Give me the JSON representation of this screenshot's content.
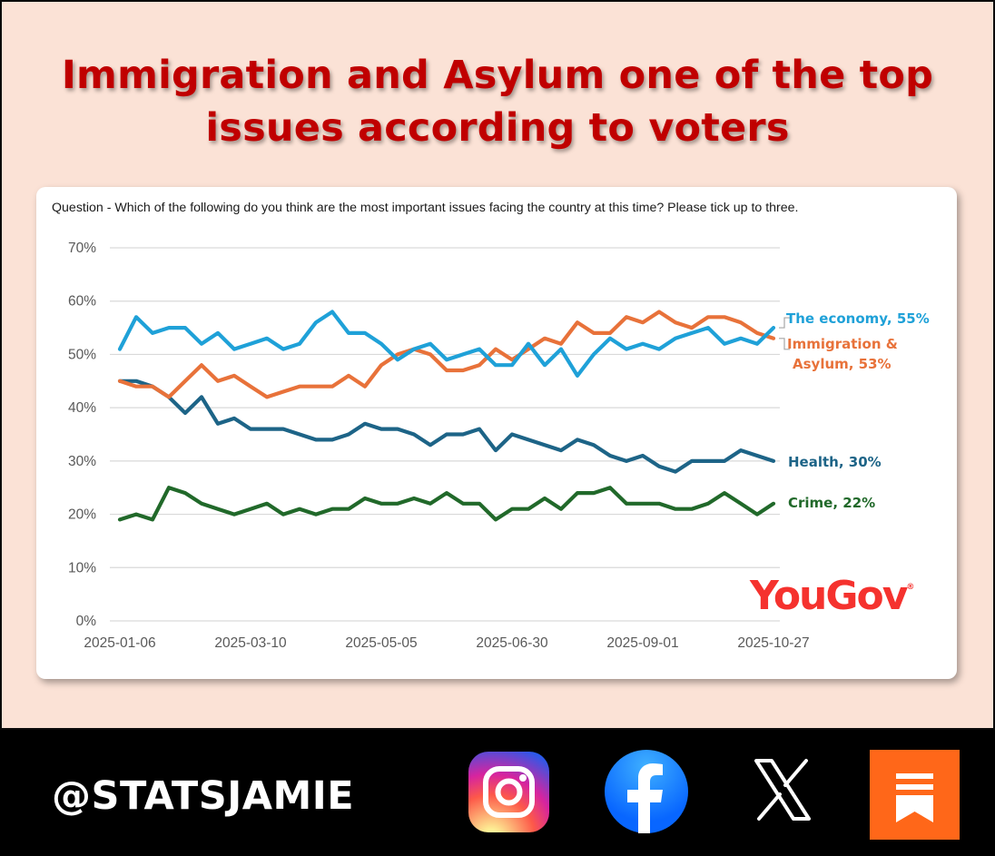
{
  "title_lines": [
    "Immigration and Asylum one of the top",
    "issues according to voters"
  ],
  "question": "Question - Which of the following do you think are the most important issues facing the country at this time? Please tick up to three.",
  "source_logo": "YouGov",
  "handle": "@STATSJAMIE",
  "social_icons": [
    "instagram-icon",
    "facebook-icon",
    "x-icon",
    "substack-icon"
  ],
  "colors": {
    "background": "#fbe2d6",
    "title": "#c00000",
    "economy": "#1fa1d8",
    "immigration": "#e8723a",
    "health": "#1d6487",
    "crime": "#21692a",
    "yougov": "#f5322e"
  },
  "chart_data": {
    "type": "line",
    "title": "Immigration and Asylum one of the top issues according to voters",
    "xlabel": "",
    "ylabel": "",
    "ylim": [
      0,
      70
    ],
    "yticks": [
      0,
      10,
      20,
      30,
      40,
      50,
      60,
      70
    ],
    "ytick_format": "percent",
    "xtick_labels": [
      "2025-01-06",
      "2025-03-10",
      "2025-05-05",
      "2025-06-30",
      "2025-09-01",
      "2025-10-27"
    ],
    "xtick_indices": [
      0,
      8,
      16,
      24,
      32,
      40
    ],
    "n_points": 41,
    "gridlines": "horizontal",
    "series": [
      {
        "name": "The economy",
        "label": "The economy, 55%",
        "color": "#1fa1d8",
        "values": [
          51,
          57,
          54,
          55,
          55,
          52,
          54,
          51,
          52,
          53,
          51,
          52,
          56,
          58,
          54,
          54,
          52,
          49,
          51,
          52,
          49,
          50,
          51,
          48,
          48,
          52,
          48,
          51,
          46,
          50,
          53,
          51,
          52,
          51,
          53,
          54,
          55,
          52,
          53,
          52,
          55
        ]
      },
      {
        "name": "Immigration & Asylum",
        "label": "Immigration & Asylum, 53%",
        "label_lines": [
          "Immigration &",
          "Asylum, 53%"
        ],
        "color": "#e8723a",
        "values": [
          45,
          44,
          44,
          42,
          45,
          48,
          45,
          46,
          44,
          42,
          43,
          44,
          44,
          44,
          46,
          44,
          48,
          50,
          51,
          50,
          47,
          47,
          48,
          51,
          49,
          51,
          53,
          52,
          56,
          54,
          54,
          57,
          56,
          58,
          56,
          55,
          57,
          57,
          56,
          54,
          53
        ]
      },
      {
        "name": "Health",
        "label": "Health, 30%",
        "color": "#1d6487",
        "values": [
          45,
          45,
          44,
          42,
          39,
          42,
          37,
          38,
          36,
          36,
          36,
          35,
          34,
          34,
          35,
          37,
          36,
          36,
          35,
          33,
          35,
          35,
          36,
          32,
          35,
          34,
          33,
          32,
          34,
          33,
          31,
          30,
          31,
          29,
          28,
          30,
          30,
          30,
          32,
          31,
          30
        ]
      },
      {
        "name": "Crime",
        "label": "Crime, 22%",
        "color": "#21692a",
        "values": [
          19,
          20,
          19,
          25,
          24,
          22,
          21,
          20,
          21,
          22,
          20,
          21,
          20,
          21,
          21,
          23,
          22,
          22,
          23,
          22,
          24,
          22,
          22,
          19,
          21,
          21,
          23,
          21,
          24,
          24,
          25,
          22,
          22,
          22,
          21,
          21,
          22,
          24,
          22,
          20,
          22
        ]
      }
    ]
  }
}
